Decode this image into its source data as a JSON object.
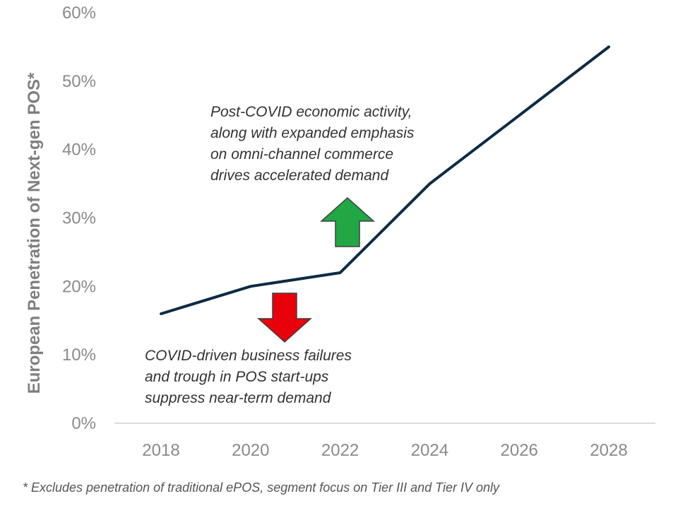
{
  "colors": {
    "line": "#0d2b45",
    "axis_line": "#d0d0d0",
    "tick_text": "#8a8a8a",
    "arrow_up_fill": "#22a745",
    "arrow_down_fill": "#e8000b",
    "arrow_outline": "#404040"
  },
  "chart_data": {
    "type": "line",
    "title": "",
    "xlabel": "",
    "ylabel": "European Penetration of Next-gen POS*",
    "x": [
      2018,
      2020,
      2022,
      2024,
      2026,
      2028
    ],
    "series": [
      {
        "values": [
          16,
          20,
          22,
          35,
          45,
          55
        ]
      }
    ],
    "x_ticks": [
      "2018",
      "2020",
      "2022",
      "2024",
      "2026",
      "2028"
    ],
    "y_ticks": [
      "0%",
      "10%",
      "20%",
      "30%",
      "40%",
      "50%",
      "60%"
    ],
    "xlim": [
      2018,
      2028
    ],
    "ylim": [
      0,
      60
    ],
    "grid": false,
    "legend": "none",
    "annotations": {
      "upside": {
        "lines": [
          "Post-COVID economic activity,",
          "along with expanded emphasis",
          "on omni-channel commerce",
          "drives accelerated demand"
        ],
        "arrow": "up",
        "arrow_color": "#22a745"
      },
      "downside": {
        "lines": [
          "COVID-driven business failures",
          "and trough in POS start-ups",
          "suppress near-term demand"
        ],
        "arrow": "down",
        "arrow_color": "#e8000b"
      }
    },
    "footnote": "* Excludes penetration of traditional ePOS, segment focus on Tier III and Tier IV only"
  }
}
